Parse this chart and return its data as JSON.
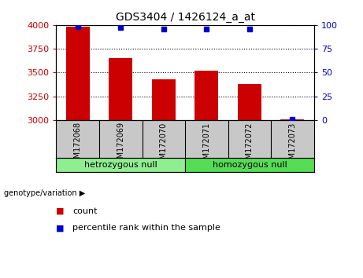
{
  "title": "GDS3404 / 1426124_a_at",
  "samples": [
    "GSM172068",
    "GSM172069",
    "GSM172070",
    "GSM172071",
    "GSM172072",
    "GSM172073"
  ],
  "counts": [
    3980,
    3650,
    3430,
    3520,
    3380,
    3010
  ],
  "percentile_ranks": [
    98,
    97,
    96,
    96,
    96,
    1
  ],
  "ymin": 3000,
  "ymax": 4000,
  "yticks_left": [
    3000,
    3250,
    3500,
    3750,
    4000
  ],
  "yticks_right": [
    0,
    25,
    50,
    75,
    100
  ],
  "bar_color": "#cc0000",
  "dot_color": "#0000cc",
  "groups": [
    {
      "label": "hetrozygous null",
      "indices": [
        0,
        1,
        2
      ],
      "color": "#90ee90"
    },
    {
      "label": "homozygous null",
      "indices": [
        3,
        4,
        5
      ],
      "color": "#55dd55"
    }
  ],
  "left_tick_color": "#cc0000",
  "right_tick_color": "#0000cc",
  "legend_count_color": "#cc0000",
  "legend_pct_color": "#0000cc",
  "bar_width": 0.55,
  "baseline": 3000,
  "sample_box_color": "#c8c8c8"
}
